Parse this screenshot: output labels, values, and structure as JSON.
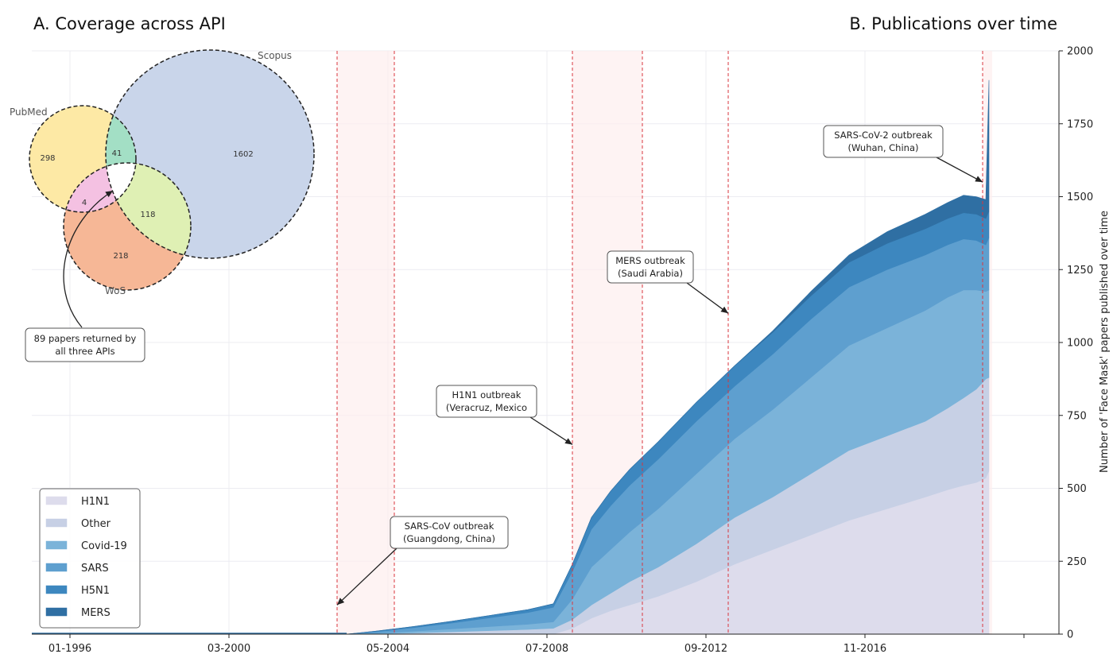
{
  "panels": {
    "a_title": "A.  Coverage across API",
    "b_title": "B.  Publications over time"
  },
  "venn": {
    "sets": {
      "pubmed": "PubMed",
      "scopus": "Scopus",
      "wos": "WoS"
    },
    "regions": {
      "pubmed_only": "298",
      "pubmed_scopus": "41",
      "scopus_only": "1602",
      "pubmed_wos": "4",
      "scopus_wos": "118",
      "wos_only": "218"
    },
    "callout": [
      "89 papers returned by",
      "all three APIs"
    ],
    "colors": {
      "pubmed": "#fde9a5",
      "scopus": "#c9d5ea",
      "wos": "#f6b796",
      "pubmed_scopus": "#a3dfc5",
      "pubmed_wos": "#f4c1e2",
      "scopus_wos": "#dff0b4"
    }
  },
  "chart_data": {
    "type": "area",
    "stacked": true,
    "title": "B.  Publications over time",
    "ylabel": "Number of 'Face Mask' papers published over time",
    "ylim": [
      0,
      2000
    ],
    "yticks": [
      0,
      250,
      500,
      750,
      1000,
      1250,
      1500,
      1750,
      2000
    ],
    "xlim": [
      "1995-01",
      "2021-12"
    ],
    "xticks": [
      "01-1996",
      "03-2000",
      "05-2004",
      "07-2008",
      "09-2012",
      "11-2016"
    ],
    "y_axis_side": "right",
    "grid": true,
    "legend_position": "bottom-left",
    "x": [
      "2003-04",
      "2004-01",
      "2005-01",
      "2006-01",
      "2007-01",
      "2008-01",
      "2008-09",
      "2009-03",
      "2009-09",
      "2010-03",
      "2010-09",
      "2011-06",
      "2012-06",
      "2013-06",
      "2014-06",
      "2015-06",
      "2016-06",
      "2017-06",
      "2018-06",
      "2019-01",
      "2019-06",
      "2019-10",
      "2020-01",
      "2020-02"
    ],
    "series": [
      {
        "name": "H1N1",
        "color": "#dddcec",
        "values": [
          0,
          0,
          0,
          0,
          0,
          0,
          0,
          20,
          55,
          80,
          100,
          130,
          180,
          240,
          290,
          340,
          390,
          430,
          470,
          495,
          510,
          520,
          535,
          560
        ]
      },
      {
        "name": "Other",
        "color": "#c7d0e5",
        "values": [
          0,
          1,
          4,
          8,
          12,
          16,
          20,
          30,
          45,
          60,
          80,
          100,
          130,
          160,
          180,
          210,
          240,
          250,
          260,
          280,
          300,
          320,
          340,
          320
        ]
      },
      {
        "name": "Covid-19",
        "color": "#7bb3d9",
        "values": [
          0,
          2,
          6,
          10,
          14,
          18,
          22,
          70,
          130,
          150,
          170,
          200,
          240,
          270,
          300,
          330,
          360,
          370,
          380,
          380,
          370,
          340,
          300,
          300
        ]
      },
      {
        "name": "SARS",
        "color": "#5e9fcf",
        "values": [
          0,
          5,
          12,
          20,
          30,
          40,
          50,
          95,
          130,
          150,
          160,
          170,
          180,
          180,
          190,
          200,
          200,
          200,
          190,
          180,
          175,
          170,
          160,
          180
        ]
      },
      {
        "name": "H5N1",
        "color": "#3d87bf",
        "values": [
          0,
          2,
          4,
          6,
          8,
          10,
          12,
          25,
          40,
          50,
          55,
          60,
          65,
          70,
          75,
          80,
          85,
          90,
          90,
          90,
          90,
          90,
          90,
          90
        ]
      },
      {
        "name": "MERS",
        "color": "#2f6fa3",
        "values": [
          0,
          0,
          0,
          0,
          0,
          0,
          0,
          0,
          0,
          0,
          0,
          0,
          0,
          0,
          5,
          15,
          25,
          40,
          50,
          55,
          60,
          60,
          65,
          450
        ]
      }
    ],
    "outbreak_bands": [
      {
        "start": "2003-01",
        "end": "2004-07"
      },
      {
        "start": "2009-03",
        "end": "2011-01"
      },
      {
        "start": "2019-12",
        "end": "2020-03"
      }
    ],
    "outbreak_lines": [
      "2003-01",
      "2004-07",
      "2009-03",
      "2011-01",
      "2013-04",
      "2019-12"
    ],
    "annotations": [
      {
        "text": [
          "SARS-CoV outbreak",
          "(Guangdong, China)"
        ],
        "at": "2003-01",
        "y": 100
      },
      {
        "text": [
          "H1N1 outbreak",
          "(Veracruz, Mexico"
        ],
        "at": "2009-03",
        "y": 650
      },
      {
        "text": [
          "MERS outbreak",
          "(Saudi Arabia)"
        ],
        "at": "2013-04",
        "y": 1100
      },
      {
        "text": [
          "SARS-CoV-2 outbreak",
          "(Wuhan, China)"
        ],
        "at": "2019-12",
        "y": 1550
      }
    ]
  }
}
